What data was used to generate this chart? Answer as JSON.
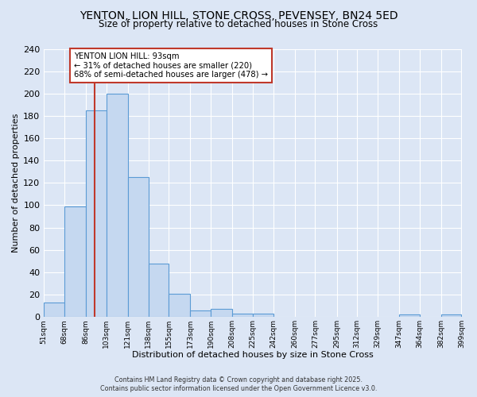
{
  "title_line1": "YENTON, LION HILL, STONE CROSS, PEVENSEY, BN24 5ED",
  "title_line2": "Size of property relative to detached houses in Stone Cross",
  "xlabel": "Distribution of detached houses by size in Stone Cross",
  "ylabel": "Number of detached properties",
  "bin_edges": [
    51,
    68,
    86,
    103,
    121,
    138,
    155,
    173,
    190,
    208,
    225,
    242,
    260,
    277,
    295,
    312,
    329,
    347,
    364,
    382,
    399
  ],
  "bar_heights": [
    13,
    99,
    185,
    200,
    125,
    48,
    21,
    6,
    7,
    3,
    3,
    0,
    0,
    0,
    0,
    0,
    0,
    2,
    0,
    2,
    0
  ],
  "bar_color": "#c5d8f0",
  "bar_edge_color": "#5b9bd5",
  "background_color": "#dce6f5",
  "plot_bg_color": "#dce6f5",
  "grid_color": "#ffffff",
  "vline_x": 93,
  "vline_color": "#c0392b",
  "annotation_text": "YENTON LION HILL: 93sqm\n← 31% of detached houses are smaller (220)\n68% of semi-detached houses are larger (478) →",
  "annotation_box_facecolor": "#ffffff",
  "annotation_box_edgecolor": "#c0392b",
  "ylim": [
    0,
    240
  ],
  "yticks": [
    0,
    20,
    40,
    60,
    80,
    100,
    120,
    140,
    160,
    180,
    200,
    220,
    240
  ],
  "footer_line1": "Contains HM Land Registry data © Crown copyright and database right 2025.",
  "footer_line2": "Contains public sector information licensed under the Open Government Licence v3.0."
}
